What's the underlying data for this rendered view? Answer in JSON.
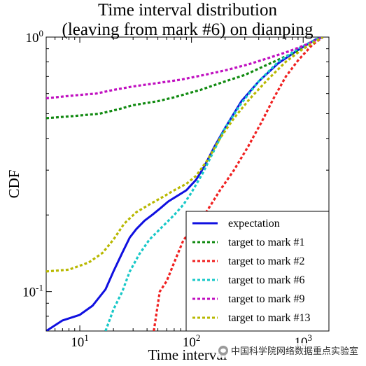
{
  "chart_data": {
    "type": "line",
    "title": "Time interval distribution",
    "subtitle": "(leaving from mark #6) on dianping",
    "xlabel": "Time interval",
    "ylabel": "CDF",
    "xscale": "log",
    "yscale": "log",
    "xlim": [
      5,
      1700
    ],
    "ylim": [
      0.07,
      1.0
    ],
    "x_ticks": [
      {
        "base": "10",
        "exp": "1",
        "value": 10
      },
      {
        "base": "10",
        "exp": "2",
        "value": 100
      },
      {
        "base": "10",
        "exp": "3",
        "value": 1000
      }
    ],
    "y_ticks": [
      {
        "base": "10",
        "exp": "-1",
        "value": 0.1
      },
      {
        "base": "10",
        "exp": "0",
        "value": 1.0
      }
    ],
    "grid": false,
    "legend_position": "bottom-right",
    "series": [
      {
        "name": "expectation",
        "color": "#1010e0",
        "style": "solid",
        "points": [
          [
            5,
            0.07
          ],
          [
            7,
            0.077
          ],
          [
            10,
            0.081
          ],
          [
            13,
            0.088
          ],
          [
            17,
            0.102
          ],
          [
            20,
            0.12
          ],
          [
            24,
            0.142
          ],
          [
            28,
            0.163
          ],
          [
            32,
            0.176
          ],
          [
            38,
            0.19
          ],
          [
            45,
            0.201
          ],
          [
            53,
            0.213
          ],
          [
            62,
            0.226
          ],
          [
            75,
            0.238
          ],
          [
            90,
            0.25
          ],
          [
            110,
            0.275
          ],
          [
            130,
            0.31
          ],
          [
            160,
            0.37
          ],
          [
            200,
            0.44
          ],
          [
            280,
            0.56
          ],
          [
            400,
            0.67
          ],
          [
            600,
            0.79
          ],
          [
            900,
            0.89
          ],
          [
            1300,
            0.98
          ],
          [
            1500,
            1.0
          ]
        ]
      },
      {
        "name": "target to mark #1",
        "color": "#108a10",
        "style": "dotted",
        "points": [
          [
            5,
            0.48
          ],
          [
            9,
            0.49
          ],
          [
            15,
            0.5
          ],
          [
            22,
            0.52
          ],
          [
            30,
            0.54
          ],
          [
            50,
            0.56
          ],
          [
            70,
            0.58
          ],
          [
            120,
            0.62
          ],
          [
            200,
            0.67
          ],
          [
            300,
            0.71
          ],
          [
            450,
            0.77
          ],
          [
            700,
            0.84
          ],
          [
            1000,
            0.9
          ],
          [
            1300,
            0.96
          ],
          [
            1500,
            1.0
          ]
        ]
      },
      {
        "name": "target to mark #2",
        "color": "#f02020",
        "style": "dotted",
        "points": [
          [
            46,
            0.07
          ],
          [
            52,
            0.1
          ],
          [
            60,
            0.11
          ],
          [
            70,
            0.13
          ],
          [
            85,
            0.16
          ],
          [
            110,
            0.18
          ],
          [
            140,
            0.21
          ],
          [
            180,
            0.25
          ],
          [
            240,
            0.3
          ],
          [
            320,
            0.37
          ],
          [
            420,
            0.46
          ],
          [
            550,
            0.58
          ],
          [
            700,
            0.7
          ],
          [
            900,
            0.81
          ],
          [
            1200,
            0.93
          ],
          [
            1500,
            1.0
          ]
        ]
      },
      {
        "name": "target to mark #6",
        "color": "#18c8c8",
        "style": "dotted",
        "points": [
          [
            17,
            0.07
          ],
          [
            20,
            0.085
          ],
          [
            24,
            0.1
          ],
          [
            28,
            0.12
          ],
          [
            34,
            0.14
          ],
          [
            42,
            0.16
          ],
          [
            55,
            0.18
          ],
          [
            70,
            0.2
          ],
          [
            85,
            0.22
          ],
          [
            100,
            0.245
          ],
          [
            125,
            0.29
          ],
          [
            160,
            0.36
          ],
          [
            200,
            0.44
          ],
          [
            280,
            0.55
          ],
          [
            400,
            0.67
          ],
          [
            600,
            0.8
          ],
          [
            900,
            0.9
          ],
          [
            1300,
            0.98
          ],
          [
            1500,
            1.0
          ]
        ]
      },
      {
        "name": "target to mark #9",
        "color": "#c010c0",
        "style": "dotted",
        "points": [
          [
            5,
            0.575
          ],
          [
            9,
            0.59
          ],
          [
            14,
            0.6
          ],
          [
            20,
            0.62
          ],
          [
            30,
            0.64
          ],
          [
            50,
            0.66
          ],
          [
            80,
            0.68
          ],
          [
            130,
            0.71
          ],
          [
            200,
            0.74
          ],
          [
            320,
            0.78
          ],
          [
            500,
            0.83
          ],
          [
            750,
            0.88
          ],
          [
            1100,
            0.94
          ],
          [
            1500,
            1.0
          ]
        ]
      },
      {
        "name": "target to mark #13",
        "color": "#b8b800",
        "style": "dotted",
        "points": [
          [
            5,
            0.12
          ],
          [
            8,
            0.122
          ],
          [
            12,
            0.13
          ],
          [
            16,
            0.142
          ],
          [
            20,
            0.16
          ],
          [
            25,
            0.185
          ],
          [
            32,
            0.205
          ],
          [
            42,
            0.22
          ],
          [
            55,
            0.235
          ],
          [
            70,
            0.25
          ],
          [
            90,
            0.265
          ],
          [
            110,
            0.285
          ],
          [
            140,
            0.33
          ],
          [
            180,
            0.4
          ],
          [
            240,
            0.48
          ],
          [
            330,
            0.57
          ],
          [
            480,
            0.68
          ],
          [
            700,
            0.8
          ],
          [
            1000,
            0.9
          ],
          [
            1500,
            1.0
          ]
        ]
      }
    ]
  },
  "watermark": {
    "icon": "wechat-icon",
    "text": "中国科学院网络数据重点实验室"
  }
}
